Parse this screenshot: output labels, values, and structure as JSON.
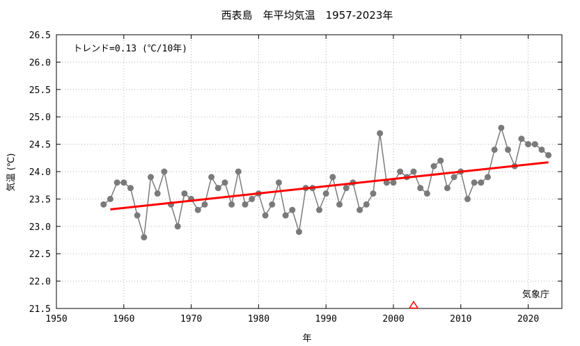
{
  "chart_data": {
    "type": "line",
    "title": "西表島　年平均気温　1957-2023年",
    "xlabel": "年",
    "ylabel": "気温 (℃)",
    "xlim": [
      1950,
      2025
    ],
    "ylim": [
      21.5,
      26.5
    ],
    "xticks": [
      1950,
      1960,
      1970,
      1980,
      1990,
      2000,
      2010,
      2020
    ],
    "yticks": [
      "21.5",
      "22.0",
      "22.5",
      "23.0",
      "23.5",
      "24.0",
      "24.5",
      "25.0",
      "25.5",
      "26.0",
      "26.5"
    ],
    "grid": true,
    "trend_text": "トレンド=0.13 (℃/10年)",
    "source_text": "気象庁",
    "colors": {
      "series": "#7a7a7a",
      "trend": "#ff0000",
      "marker": "#ff0000"
    },
    "series": [
      {
        "x": [
          1957,
          1958,
          1959,
          1960,
          1961,
          1962,
          1963,
          1964,
          1965,
          1966,
          1967,
          1968,
          1969,
          1970,
          1971,
          1972,
          1973,
          1974,
          1975,
          1976,
          1977,
          1978,
          1979,
          1980,
          1981,
          1982,
          1983,
          1984,
          1985,
          1986,
          1987,
          1988,
          1989,
          1990,
          1991,
          1992,
          1993,
          1994,
          1995,
          1996,
          1997,
          1998,
          1999,
          2000,
          2001,
          2002,
          2003,
          2004,
          2005,
          2006,
          2007,
          2008,
          2009,
          2010,
          2011,
          2012,
          2013,
          2014,
          2015,
          2016,
          2017,
          2018,
          2019,
          2020,
          2021,
          2022,
          2023
        ],
        "values": [
          23.4,
          23.5,
          23.8,
          23.8,
          23.7,
          23.2,
          22.8,
          23.9,
          23.6,
          24.0,
          23.4,
          23.0,
          23.6,
          23.5,
          23.3,
          23.4,
          23.9,
          23.7,
          23.8,
          23.4,
          24.0,
          23.4,
          23.5,
          23.6,
          23.2,
          23.4,
          23.8,
          23.2,
          23.3,
          22.9,
          23.7,
          23.7,
          23.3,
          23.6,
          23.9,
          23.4,
          23.7,
          23.8,
          23.3,
          23.4,
          23.6,
          24.7,
          23.8,
          23.8,
          24.0,
          23.9,
          24.0,
          23.7,
          23.6,
          24.1,
          24.2,
          23.7,
          23.9,
          24.0,
          23.5,
          23.8,
          23.8,
          23.9,
          24.4,
          24.8,
          24.4,
          24.1,
          24.6,
          24.5,
          24.5,
          24.4,
          24.3
        ]
      }
    ],
    "trend": {
      "x": [
        1958,
        2023
      ],
      "y": [
        23.31,
        24.17
      ]
    },
    "event_markers": [
      2003
    ]
  }
}
